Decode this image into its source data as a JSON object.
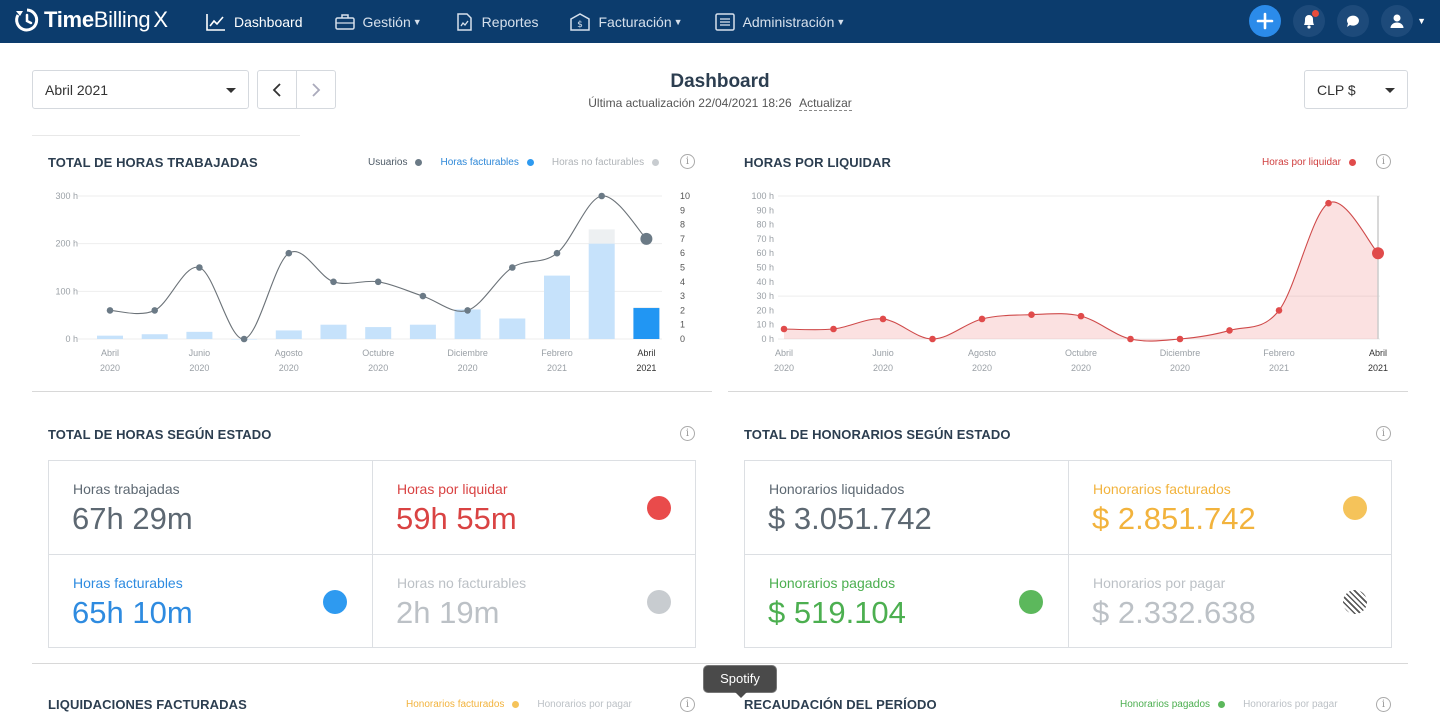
{
  "brand": {
    "name_bold": "Time",
    "name_light": "Billing",
    "name_suffix": "X"
  },
  "nav": {
    "items": [
      {
        "label": "Dashboard",
        "icon": "chart-line-icon",
        "has_caret": false
      },
      {
        "label": "Gestión",
        "icon": "briefcase-icon",
        "has_caret": true
      },
      {
        "label": "Reportes",
        "icon": "report-icon",
        "has_caret": false
      },
      {
        "label": "Facturación",
        "icon": "invoice-icon",
        "has_caret": true
      },
      {
        "label": "Administración",
        "icon": "list-icon",
        "has_caret": true
      }
    ]
  },
  "header": {
    "month_select": "Abril 2021",
    "title": "Dashboard",
    "update_text": "Última actualización 22/04/2021 18:26",
    "update_link": "Actualizar",
    "currency_select": "CLP $"
  },
  "hours_chart": {
    "title": "TOTAL DE HORAS TRABAJADAS",
    "legend": [
      {
        "label": "Usuarios",
        "color": "#6b7a86",
        "text_color": "#4d5a66"
      },
      {
        "label": "Horas facturables",
        "color": "#2e9af0",
        "text_color": "#2e88d8"
      },
      {
        "label": "Horas no facturables",
        "color": "#c8ccd0",
        "text_color": "#b0b4b8"
      }
    ]
  },
  "pending_chart": {
    "title": "HORAS POR LIQUIDAR",
    "legend": [
      {
        "label": "Horas por liquidar",
        "color": "#e04b4b",
        "text_color": "#d04040"
      }
    ]
  },
  "chart_data": [
    {
      "type": "bar",
      "title": "TOTAL DE HORAS TRABAJADAS",
      "categories": [
        "Abr 2020",
        "May 2020",
        "Jun 2020",
        "Jul 2020",
        "Ago 2020",
        "Sep 2020",
        "Oct 2020",
        "Nov 2020",
        "Dic 2020",
        "Ene 2021",
        "Feb 2021",
        "Mar 2021",
        "Abr 2021"
      ],
      "x_tick_labels": [
        {
          "index": 0,
          "month": "Abril",
          "year": "2020"
        },
        {
          "index": 2,
          "month": "Junio",
          "year": "2020"
        },
        {
          "index": 4,
          "month": "Agosto",
          "year": "2020"
        },
        {
          "index": 6,
          "month": "Octubre",
          "year": "2020"
        },
        {
          "index": 8,
          "month": "Diciembre",
          "year": "2020"
        },
        {
          "index": 10,
          "month": "Febrero",
          "year": "2021"
        },
        {
          "index": 12,
          "month": "Abril",
          "year": "2021"
        }
      ],
      "y_ticks_left": [
        "0 h",
        "100 h",
        "200 h",
        "300 h"
      ],
      "y_ticks_right": [
        "0",
        "1",
        "2",
        "3",
        "4",
        "5",
        "6",
        "7",
        "8",
        "9",
        "10"
      ],
      "ylim_left": [
        0,
        300
      ],
      "ylim_right": [
        0,
        10
      ],
      "series": [
        {
          "name": "Horas facturables",
          "axis": "left",
          "values": [
            7,
            10,
            15,
            0,
            18,
            30,
            25,
            30,
            62,
            43,
            133,
            200,
            65
          ]
        },
        {
          "name": "Horas no facturables",
          "axis": "left",
          "values": [
            0,
            0,
            0,
            0,
            0,
            0,
            0,
            0,
            0,
            0,
            0,
            30,
            2
          ]
        },
        {
          "name": "Usuarios",
          "axis": "right",
          "type": "line",
          "values": [
            2,
            2,
            5,
            0,
            6,
            4,
            4,
            3,
            2,
            5,
            6,
            10,
            7
          ]
        }
      ],
      "grid": true
    },
    {
      "type": "area",
      "title": "HORAS POR LIQUIDAR",
      "categories": [
        "Abr 2020",
        "May 2020",
        "Jun 2020",
        "Jul 2020",
        "Ago 2020",
        "Sep 2020",
        "Oct 2020",
        "Nov 2020",
        "Dic 2020",
        "Ene 2021",
        "Feb 2021",
        "Mar 2021",
        "Abr 2021"
      ],
      "x_tick_labels": [
        {
          "index": 0,
          "month": "Abril",
          "year": "2020"
        },
        {
          "index": 2,
          "month": "Junio",
          "year": "2020"
        },
        {
          "index": 4,
          "month": "Agosto",
          "year": "2020"
        },
        {
          "index": 6,
          "month": "Octubre",
          "year": "2020"
        },
        {
          "index": 8,
          "month": "Diciembre",
          "year": "2020"
        },
        {
          "index": 10,
          "month": "Febrero",
          "year": "2021"
        },
        {
          "index": 12,
          "month": "Abril",
          "year": "2021"
        }
      ],
      "y_ticks": [
        "0 h",
        "10 h",
        "20 h",
        "30 h",
        "40 h",
        "50 h",
        "60 h",
        "70 h",
        "80 h",
        "90 h",
        "100 h"
      ],
      "ylim": [
        0,
        100
      ],
      "series": [
        {
          "name": "Horas por liquidar",
          "values": [
            7,
            7,
            14,
            0,
            14,
            17,
            16,
            0,
            0,
            6,
            20,
            95,
            60
          ]
        }
      ],
      "grid": true
    }
  ],
  "hours_status": {
    "title": "TOTAL DE HORAS SEGÚN ESTADO",
    "cells": [
      {
        "label": "Horas trabajadas",
        "value": "67h 29m",
        "color": "#5d6872",
        "marker": "none"
      },
      {
        "label": "Horas por liquidar",
        "value": "59h 55m",
        "color": "#d94343",
        "marker": "#e94b4b"
      },
      {
        "label": "Horas facturables",
        "value": "65h 10m",
        "color": "#2e8be0",
        "marker": "#2e9af0"
      },
      {
        "label": "Horas no facturables",
        "value": "2h 19m",
        "color": "#bcc1c6",
        "marker": "#c8ccd0"
      }
    ]
  },
  "fees_status": {
    "title": "TOTAL DE HONORARIOS SEGÚN ESTADO",
    "cells": [
      {
        "label": "Honorarios liquidados",
        "value": "$ 3.051.742",
        "color": "#5d6872",
        "marker": "none"
      },
      {
        "label": "Honorarios facturados",
        "value": "$ 2.851.742",
        "color": "#f2b33d",
        "marker": "#f5c35a"
      },
      {
        "label": "Honorarios pagados",
        "value": "$ 519.104",
        "color": "#4caf50",
        "marker": "#5cb85c"
      },
      {
        "label": "Honorarios por pagar",
        "value": "$ 2.332.638",
        "color": "#bcc1c6",
        "marker": "hatched"
      }
    ]
  },
  "bottom_cards": {
    "left_title": "LIQUIDACIONES FACTURADAS",
    "left_legend": [
      "Honorarios facturados",
      "Honorarios por pagar"
    ],
    "right_title": "RECAUDACIÓN DEL PERÍODO",
    "right_legend": [
      "Honorarios pagados",
      "Honorarios por pagar"
    ]
  },
  "tooltip": {
    "text": "Spotify"
  }
}
